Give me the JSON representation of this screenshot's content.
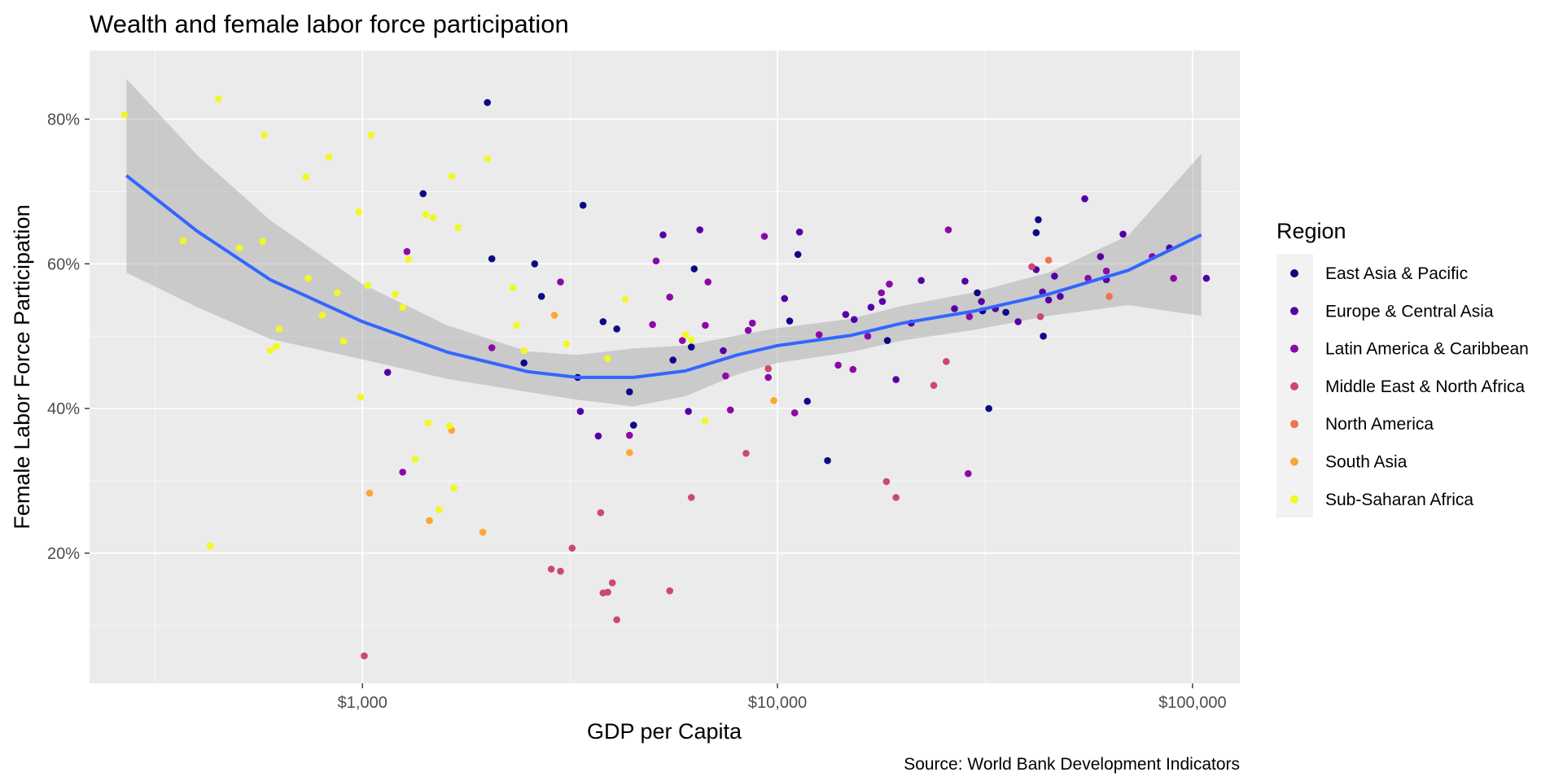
{
  "chart_data": {
    "type": "scatter",
    "title": "Wealth and female labor force participation",
    "xlabel": "GDP per Capita",
    "ylabel": "Female Labor Force Participation",
    "caption": "Source: World Bank Development Indicators",
    "x_scale": "log10",
    "xlim": [
      220,
      130000
    ],
    "ylim": [
      0.02,
      0.895
    ],
    "x_ticks": [
      1000,
      10000,
      100000
    ],
    "x_tick_labels": [
      "$1,000",
      "$10,000",
      "$100,000"
    ],
    "x_minor_ticks": [
      316,
      3162,
      31623
    ],
    "y_ticks": [
      0.2,
      0.4,
      0.6,
      0.8
    ],
    "y_tick_labels": [
      "20%",
      "40%",
      "60%",
      "80%"
    ],
    "y_minor_ticks": [
      0.1,
      0.3,
      0.5,
      0.7
    ],
    "grid": true,
    "legend": {
      "title": "Region",
      "placement": "right",
      "entries": [
        {
          "name": "East Asia & Pacific",
          "color": "#0d0887"
        },
        {
          "name": "Europe & Central Asia",
          "color": "#5402a3"
        },
        {
          "name": "Latin America & Caribbean",
          "color": "#8b0aa5"
        },
        {
          "name": "Middle East & North Africa",
          "color": "#cc4778"
        },
        {
          "name": "North America",
          "color": "#f0734e"
        },
        {
          "name": "South Asia",
          "color": "#fca636"
        },
        {
          "name": "Sub-Saharan Africa",
          "color": "#f0f921"
        }
      ]
    },
    "colors": {
      "panel_background": "#ebebeb",
      "grid_major": "#ffffff",
      "smooth_line": "#3366ff",
      "ribbon": "#999999"
    },
    "smooth": {
      "method": "loess",
      "x": [
        270,
        400,
        600,
        1000,
        1600,
        2500,
        3300,
        4500,
        6000,
        8000,
        10000,
        15000,
        20000,
        30000,
        45000,
        70000,
        105000
      ],
      "y": [
        0.722,
        0.645,
        0.578,
        0.52,
        0.478,
        0.451,
        0.443,
        0.443,
        0.452,
        0.474,
        0.487,
        0.501,
        0.518,
        0.535,
        0.558,
        0.591,
        0.64
      ],
      "ymin": [
        0.588,
        0.54,
        0.496,
        0.468,
        0.441,
        0.423,
        0.412,
        0.403,
        0.417,
        0.447,
        0.463,
        0.478,
        0.494,
        0.509,
        0.528,
        0.543,
        0.528
      ],
      "ymax": [
        0.856,
        0.75,
        0.66,
        0.572,
        0.515,
        0.479,
        0.474,
        0.483,
        0.487,
        0.501,
        0.511,
        0.524,
        0.542,
        0.561,
        0.588,
        0.639,
        0.752
      ]
    },
    "series": [
      {
        "name": "East Asia & Pacific",
        "x": [
          1400,
          2000,
          2600,
          3400,
          2050,
          3300,
          2450,
          2700,
          3800,
          4100,
          4400,
          4500,
          5600,
          6200,
          6300,
          10700,
          11200,
          11800,
          13200,
          18400,
          30300,
          32300,
          31200,
          35500,
          42000,
          42500,
          43700
        ],
        "y": [
          0.697,
          0.823,
          0.6,
          0.681,
          0.607,
          0.443,
          0.463,
          0.555,
          0.52,
          0.51,
          0.423,
          0.377,
          0.467,
          0.485,
          0.593,
          0.521,
          0.613,
          0.41,
          0.328,
          0.494,
          0.56,
          0.4,
          0.535,
          0.533,
          0.643,
          0.661,
          0.5
        ]
      },
      {
        "name": "Europe & Central Asia",
        "x": [
          1150,
          3350,
          3700,
          5300,
          6100,
          6500,
          7400,
          10400,
          11300,
          14600,
          15300,
          16800,
          17900,
          19300,
          21000,
          22200,
          26700,
          28300,
          31000,
          33500,
          38000,
          42000,
          43500,
          45000,
          46500,
          48000,
          55000,
          60000,
          62000,
          68000,
          88000,
          108000
        ],
        "y": [
          0.45,
          0.396,
          0.362,
          0.64,
          0.396,
          0.647,
          0.48,
          0.552,
          0.644,
          0.53,
          0.523,
          0.54,
          0.548,
          0.44,
          0.518,
          0.577,
          0.538,
          0.576,
          0.548,
          0.538,
          0.52,
          0.592,
          0.561,
          0.55,
          0.583,
          0.555,
          0.69,
          0.61,
          0.578,
          0.641,
          0.622,
          0.58
        ]
      },
      {
        "name": "Latin America & Caribbean",
        "x": [
          1250,
          1280,
          2050,
          3000,
          4400,
          5000,
          5100,
          5500,
          5900,
          6700,
          6800,
          7500,
          7700,
          8500,
          8700,
          9300,
          9500,
          11000,
          12600,
          14000,
          15200,
          16500,
          17800,
          18600,
          25800,
          28800,
          29000,
          56000,
          62000,
          80000,
          90000
        ],
        "y": [
          0.312,
          0.617,
          0.484,
          0.575,
          0.363,
          0.516,
          0.604,
          0.554,
          0.494,
          0.515,
          0.575,
          0.445,
          0.398,
          0.508,
          0.518,
          0.638,
          0.443,
          0.394,
          0.502,
          0.46,
          0.454,
          0.5,
          0.56,
          0.572,
          0.647,
          0.31,
          0.527,
          0.58,
          0.59,
          0.61,
          0.58
        ]
      },
      {
        "name": "Middle East & North Africa",
        "x": [
          1010,
          2850,
          3000,
          3200,
          3750,
          3800,
          3900,
          4000,
          4100,
          5500,
          6200,
          8400,
          9500,
          18300,
          19300,
          23800,
          25500,
          41000,
          43000
        ],
        "y": [
          0.058,
          0.178,
          0.175,
          0.207,
          0.256,
          0.145,
          0.146,
          0.159,
          0.108,
          0.148,
          0.277,
          0.338,
          0.455,
          0.299,
          0.277,
          0.432,
          0.465,
          0.596,
          0.527
        ]
      },
      {
        "name": "North America",
        "x": [
          45000,
          63000
        ],
        "y": [
          0.605,
          0.555
        ]
      },
      {
        "name": "South Asia",
        "x": [
          1040,
          1450,
          1640,
          1950,
          2900,
          4400,
          9800
        ],
        "y": [
          0.283,
          0.245,
          0.37,
          0.229,
          0.529,
          0.339,
          0.411
        ]
      },
      {
        "name": "Sub-Saharan Africa",
        "x": [
          267,
          370,
          430,
          450,
          505,
          575,
          580,
          600,
          620,
          630,
          730,
          740,
          800,
          830,
          870,
          900,
          980,
          990,
          1030,
          1050,
          1200,
          1250,
          1290,
          1340,
          1420,
          1440,
          1480,
          1530,
          1620,
          1640,
          1660,
          1700,
          2000,
          2300,
          2350,
          2450,
          3100,
          3900,
          4300,
          6000,
          6200,
          6700
        ],
        "y": [
          0.806,
          0.632,
          0.21,
          0.828,
          0.622,
          0.631,
          0.778,
          0.48,
          0.486,
          0.51,
          0.72,
          0.58,
          0.529,
          0.748,
          0.56,
          0.493,
          0.672,
          0.416,
          0.57,
          0.778,
          0.558,
          0.54,
          0.606,
          0.33,
          0.668,
          0.38,
          0.664,
          0.26,
          0.376,
          0.721,
          0.29,
          0.65,
          0.745,
          0.567,
          0.515,
          0.48,
          0.489,
          0.469,
          0.551,
          0.502,
          0.495,
          0.383
        ]
      }
    ]
  }
}
